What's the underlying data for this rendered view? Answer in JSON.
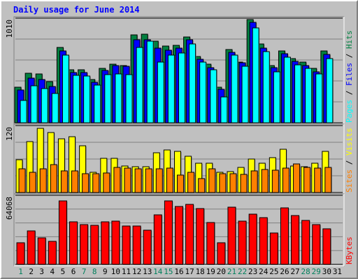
{
  "chart_data": {
    "type": "bar",
    "title": "Daily usage for June 2014",
    "categories": [
      "1",
      "2",
      "3",
      "4",
      "5",
      "6",
      "7",
      "8",
      "9",
      "10",
      "11",
      "12",
      "13",
      "14",
      "15",
      "16",
      "17",
      "18",
      "19",
      "20",
      "21",
      "22",
      "23",
      "24",
      "25",
      "26",
      "27",
      "28",
      "29",
      "30",
      "31"
    ],
    "weekend_days": [
      "1",
      "7",
      "8",
      "14",
      "15",
      "21",
      "22",
      "28",
      "29"
    ],
    "panels": [
      {
        "id": "hits-files-pages",
        "max_label": "1010",
        "ylim": [
          0,
          1010
        ],
        "series": [
          {
            "name": "Hits",
            "color": "#008040",
            "values": [
              350,
              485,
              475,
              405,
              740,
              520,
              520,
              425,
              530,
              570,
              560,
              860,
              870,
              800,
              750,
              760,
              840,
              650,
              570,
              350,
              715,
              595,
              1010,
              770,
              560,
              705,
              630,
              595,
              535,
              700,
              0
            ]
          },
          {
            "name": "Files",
            "color": "#0000ff",
            "values": [
              320,
              435,
              425,
              355,
              700,
              490,
              490,
              395,
              510,
              560,
              550,
              810,
              810,
              730,
              710,
              730,
              810,
              620,
              540,
              330,
              690,
              590,
              980,
              730,
              540,
              675,
              600,
              560,
              500,
              670,
              0
            ]
          },
          {
            "name": "Pages",
            "color": "#00ffff",
            "values": [
              215,
              360,
              335,
              285,
              665,
              465,
              455,
              370,
              470,
              480,
              470,
              740,
              800,
              595,
              665,
              680,
              770,
              595,
              520,
              255,
              665,
              550,
              925,
              695,
              500,
              640,
              565,
              535,
              480,
              625,
              0
            ]
          }
        ]
      },
      {
        "id": "visits-sites",
        "max_label": "120",
        "ylim": [
          0,
          120
        ],
        "series": [
          {
            "name": "Visits",
            "color": "#ffff00",
            "values": [
              60,
              93,
              118,
              110,
              98,
              102,
              85,
              37,
              63,
              62,
              48,
              47,
              47,
              73,
              78,
              75,
              67,
              53,
              54,
              37,
              38,
              46,
              61,
              54,
              64,
              79,
              49,
              47,
              53,
              75,
              0
            ]
          },
          {
            "name": "Sites",
            "color": "#ff8000",
            "values": [
              44,
              37,
              44,
              51,
              40,
              40,
              34,
              35,
              36,
              46,
              45,
              43,
              44,
              44,
              45,
              32,
              37,
              26,
              44,
              35,
              35,
              33,
              40,
              42,
              41,
              45,
              52,
              46,
              45,
              46,
              0
            ]
          }
        ]
      },
      {
        "id": "kbytes",
        "max_label": "64068",
        "ylim": [
          0,
          64068
        ],
        "series": [
          {
            "name": "KBytes",
            "color": "#ff0000",
            "values": [
              20500,
              31400,
              25000,
              21700,
              60100,
              40200,
              37800,
              37100,
              40000,
              41000,
              36100,
              36200,
              32500,
              46700,
              60000,
              54700,
              56800,
              52800,
              39800,
              20800,
              54200,
              40900,
              47800,
              44400,
              29900,
              53600,
              46100,
              41300,
              37800,
              33600,
              0
            ]
          }
        ]
      }
    ],
    "legend_right": [
      {
        "panel": "hits-files-pages",
        "items": [
          "Hits",
          "Files",
          "Pages"
        ],
        "separator": " / "
      },
      {
        "panel": "visits-sites",
        "items": [
          "Visits",
          "Sites"
        ],
        "separator": " / "
      },
      {
        "panel": "kbytes",
        "items": [
          "KBytes"
        ],
        "separator": ""
      }
    ],
    "day_label_colors": {
      "weekday": "#000000",
      "weekend": "#00805c"
    }
  }
}
